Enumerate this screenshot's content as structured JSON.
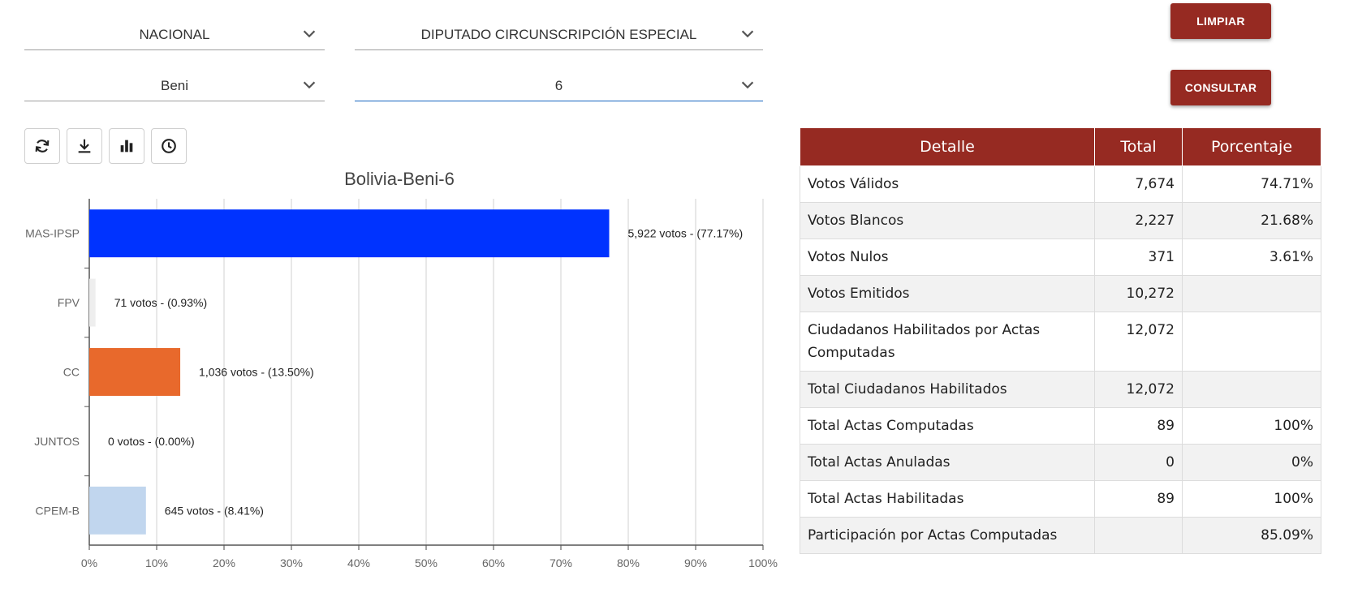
{
  "filters": {
    "scope": "NACIONAL",
    "election_type": "DIPUTADO CIRCUNSCRIPCIÓN ESPECIAL",
    "department": "Beni",
    "circunscripcion": "6"
  },
  "buttons": {
    "clear": "LIMPIAR",
    "query": "CONSULTAR"
  },
  "toolbar": {
    "icons": [
      "refresh-icon",
      "download-icon",
      "bar-chart-icon",
      "clock-icon"
    ]
  },
  "colors": {
    "accent": "#962a22",
    "active_underline": "#1565c0"
  },
  "chart_data": {
    "type": "bar",
    "orientation": "horizontal",
    "title": "Bolivia-Beni-6",
    "categories": [
      "MAS-IPSP",
      "FPV",
      "CC",
      "JUNTOS",
      "CPEM-B"
    ],
    "values": [
      77.17,
      0.93,
      13.5,
      0.0,
      8.41
    ],
    "votes": [
      5922,
      71,
      1036,
      0,
      645
    ],
    "labels": [
      "5,922 votos - (77.17%)",
      "71 votos - (0.93%)",
      "1,036 votos - (13.50%)",
      "0 votos - (0.00%)",
      "645 votos - (8.41%)"
    ],
    "colors": [
      "#0033ff",
      "#eeeeee",
      "#e8692c",
      "#cccccc",
      "#c1d6ee"
    ],
    "xlim": [
      0,
      100
    ],
    "xticks": [
      "0%",
      "10%",
      "20%",
      "30%",
      "40%",
      "50%",
      "60%",
      "70%",
      "80%",
      "90%",
      "100%"
    ],
    "grid": true
  },
  "table": {
    "headers": [
      "Detalle",
      "Total",
      "Porcentaje"
    ],
    "rows": [
      {
        "detail": "Votos Válidos",
        "total": "7,674",
        "percent": "74.71%"
      },
      {
        "detail": "Votos Blancos",
        "total": "2,227",
        "percent": "21.68%"
      },
      {
        "detail": "Votos Nulos",
        "total": "371",
        "percent": "3.61%"
      },
      {
        "detail": "Votos Emitidos",
        "total": "10,272",
        "percent": ""
      },
      {
        "detail": "Ciudadanos Habilitados por Actas Computadas",
        "total": "12,072",
        "percent": ""
      },
      {
        "detail": "Total Ciudadanos Habilitados",
        "total": "12,072",
        "percent": ""
      },
      {
        "detail": "Total Actas Computadas",
        "total": "89",
        "percent": "100%"
      },
      {
        "detail": "Total Actas Anuladas",
        "total": "0",
        "percent": "0%"
      },
      {
        "detail": "Total Actas Habilitadas",
        "total": "89",
        "percent": "100%"
      },
      {
        "detail": "Participación por Actas Computadas",
        "total": "",
        "percent": "85.09%"
      }
    ]
  }
}
